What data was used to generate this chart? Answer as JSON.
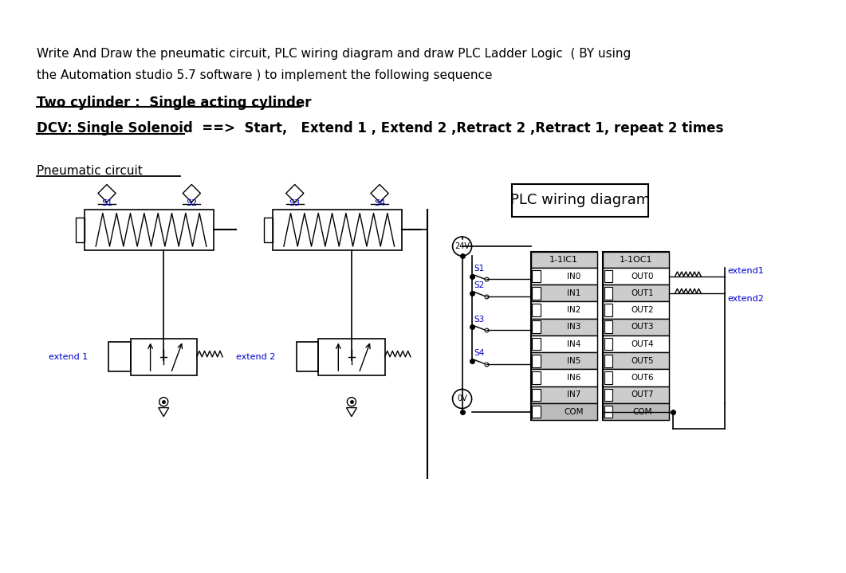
{
  "title_line1": "Write And Draw the pneumatic circuit, PLC wiring diagram and draw PLC Ladder Logic  ( BY using",
  "title_line2": "the Automation studio 5.7 software ) to implement the following sequence",
  "subtitle1": "Two cylinder :  Single acting cylinder",
  "subtitle2": "DCV: Single Solenoid  ==>  Start,   Extend 1 , Extend 2 ,Retract 2 ,Retract 1, repeat 2 times",
  "pneumatic_label": "Pneumatic circuit",
  "plc_box_label": "PLC wiring diagram",
  "s1_label": "S1",
  "s2_label": "S2",
  "s3_label": "S3",
  "s4_label": "S4",
  "extend1_label": "extend 1",
  "extend2_label": "extend 2",
  "extend1_out": "extend1",
  "extend2_out": "extend2",
  "v24_label": "24V",
  "v0_label": "0V",
  "ic1_label": "1-1IC1",
  "oc1_label": "1-1OC1",
  "in_labels": [
    "IN0",
    "IN1",
    "IN2",
    "IN3",
    "IN4",
    "IN5",
    "IN6",
    "IN7",
    "COM"
  ],
  "out_labels": [
    "OUT0",
    "OUT1",
    "OUT2",
    "OUT3",
    "OUT4",
    "OUT5",
    "OUT6",
    "OUT7",
    "COM"
  ],
  "bg_color": "#ffffff",
  "text_color": "#000000",
  "blue_color": "#0000cc",
  "line_color": "#000000",
  "box_color": "#cccccc"
}
